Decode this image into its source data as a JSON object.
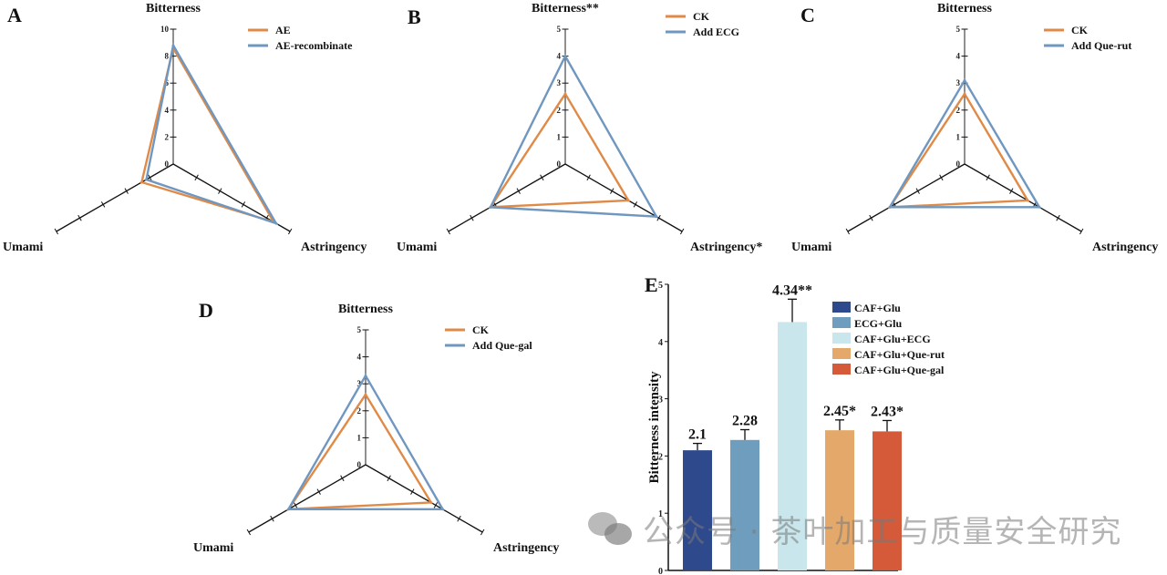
{
  "chart_data": [
    {
      "panel": "A",
      "type": "radar",
      "axes": [
        "Bitterness",
        "Astringency",
        "Umami"
      ],
      "range": [
        0,
        10
      ],
      "ticks": [
        0,
        2,
        4,
        6,
        8,
        10
      ],
      "series": [
        {
          "name": "AE",
          "color": "#e08a48",
          "values": [
            8.6,
            8.6,
            2.7
          ]
        },
        {
          "name": "AE-recombinate",
          "color": "#6f97bf",
          "values": [
            8.8,
            8.8,
            2.3
          ]
        }
      ]
    },
    {
      "panel": "B",
      "type": "radar",
      "axes": [
        "Bitterness**",
        "Astringency*",
        "Umami"
      ],
      "range": [
        0,
        5
      ],
      "ticks": [
        0,
        1,
        2,
        3,
        4,
        5
      ],
      "series": [
        {
          "name": "CK",
          "color": "#e08a48",
          "values": [
            2.6,
            2.7,
            3.2
          ]
        },
        {
          "name": "Add ECG",
          "color": "#6f97bf",
          "values": [
            4.0,
            3.9,
            3.2
          ]
        }
      ]
    },
    {
      "panel": "C",
      "type": "radar",
      "axes": [
        "Bitterness",
        "Astringency",
        "Umami"
      ],
      "range": [
        0,
        5
      ],
      "ticks": [
        0,
        1,
        2,
        3,
        4,
        5
      ],
      "series": [
        {
          "name": "CK",
          "color": "#e08a48",
          "values": [
            2.6,
            2.7,
            3.2
          ]
        },
        {
          "name": "Add Que-rut",
          "color": "#6f97bf",
          "values": [
            3.1,
            3.2,
            3.2
          ]
        }
      ]
    },
    {
      "panel": "D",
      "type": "radar",
      "axes": [
        "Bitterness",
        "Astringency",
        "Umami"
      ],
      "range": [
        0,
        5
      ],
      "ticks": [
        0,
        1,
        2,
        3,
        4,
        5
      ],
      "series": [
        {
          "name": "CK",
          "color": "#e08a48",
          "values": [
            2.6,
            2.8,
            3.3
          ]
        },
        {
          "name": "Add Que-gal",
          "color": "#6f97bf",
          "values": [
            3.3,
            3.3,
            3.3
          ]
        }
      ]
    },
    {
      "panel": "E",
      "type": "bar",
      "ylabel": "Bitterness intensity",
      "ylim": [
        0,
        5
      ],
      "yticks": [
        0,
        1,
        2,
        3,
        4,
        5
      ],
      "categories": [
        "CAF+Glu",
        "ECG+Glu",
        "CAF+Glu+ECG",
        "CAF+Glu+Que-rut",
        "CAF+Glu+Que-gal"
      ],
      "values": [
        2.1,
        2.28,
        4.34,
        2.45,
        2.43
      ],
      "errors": [
        0.12,
        0.18,
        0.4,
        0.18,
        0.19
      ],
      "labels": [
        "2.1",
        "2.28",
        "4.34**",
        "2.45*",
        "2.43*"
      ],
      "colors": [
        "#2f4a8c",
        "#6f9dbd",
        "#c8e6ec",
        "#e4a96a",
        "#d45a3a"
      ],
      "legend": "top-right"
    }
  ],
  "watermark": "公众号 · 茶叶加工与质量安全研究"
}
